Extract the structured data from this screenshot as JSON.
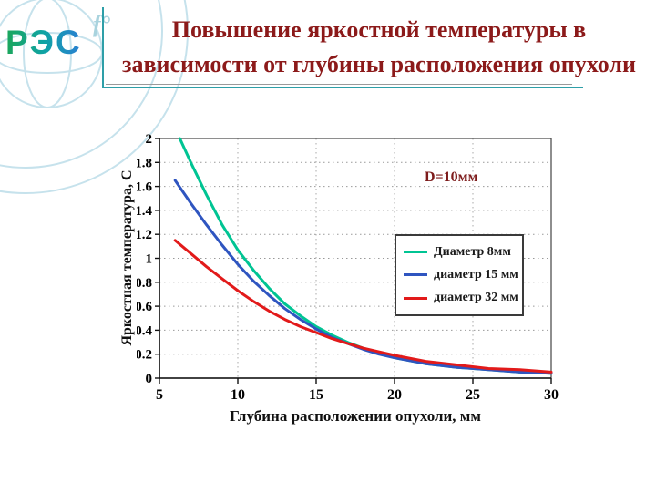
{
  "slide": {
    "logo_text": "РЭС",
    "logo_mark": "f°",
    "title_line1": "Повышение яркостной температуры в",
    "title_line2": "зависимости от глубины расположения опухоли"
  },
  "colors": {
    "accent_teal": "#2e9fa8",
    "title_maroon": "#8c1a1a",
    "annotation_red": "#7d1b1b"
  },
  "chart_data": {
    "type": "line",
    "title": "",
    "annotation": "D=10мм",
    "xlabel": "Глубина расположении опухоли, мм",
    "ylabel": "Яркостная  температура, С",
    "xlim": [
      5,
      30
    ],
    "ylim": [
      0,
      2
    ],
    "xticks": [
      5,
      10,
      15,
      20,
      25,
      30
    ],
    "yticks": [
      0,
      0.2,
      0.4,
      0.6,
      0.8,
      1,
      1.2,
      1.4,
      1.6,
      1.8,
      2
    ],
    "grid": true,
    "legend_position": "right-inside",
    "series": [
      {
        "name": "Диаметр 8мм",
        "color": "#00c493",
        "x": [
          6.3,
          7,
          8,
          9,
          10,
          11,
          12,
          13,
          14,
          15,
          16,
          17,
          18,
          19,
          20,
          22,
          24,
          26,
          28,
          30
        ],
        "y": [
          2.0,
          1.8,
          1.53,
          1.28,
          1.07,
          0.9,
          0.75,
          0.62,
          0.52,
          0.43,
          0.36,
          0.3,
          0.25,
          0.21,
          0.17,
          0.12,
          0.09,
          0.07,
          0.05,
          0.04
        ]
      },
      {
        "name": "диаметр 15 мм",
        "color": "#2f55c0",
        "x": [
          6,
          7,
          8,
          9,
          10,
          11,
          12,
          13,
          14,
          15,
          16,
          17,
          18,
          19,
          20,
          22,
          24,
          26,
          28,
          30
        ],
        "y": [
          1.65,
          1.46,
          1.28,
          1.11,
          0.95,
          0.81,
          0.69,
          0.58,
          0.49,
          0.41,
          0.34,
          0.29,
          0.24,
          0.2,
          0.17,
          0.12,
          0.09,
          0.07,
          0.05,
          0.04
        ]
      },
      {
        "name": "диаметр 32 мм",
        "color": "#e21a1a",
        "x": [
          6,
          7,
          8,
          9,
          10,
          11,
          12,
          13,
          14,
          15,
          16,
          17,
          18,
          19,
          20,
          22,
          24,
          26,
          28,
          30
        ],
        "y": [
          1.15,
          1.04,
          0.93,
          0.83,
          0.73,
          0.64,
          0.56,
          0.49,
          0.43,
          0.38,
          0.33,
          0.29,
          0.25,
          0.22,
          0.19,
          0.14,
          0.11,
          0.08,
          0.07,
          0.05
        ]
      }
    ]
  }
}
